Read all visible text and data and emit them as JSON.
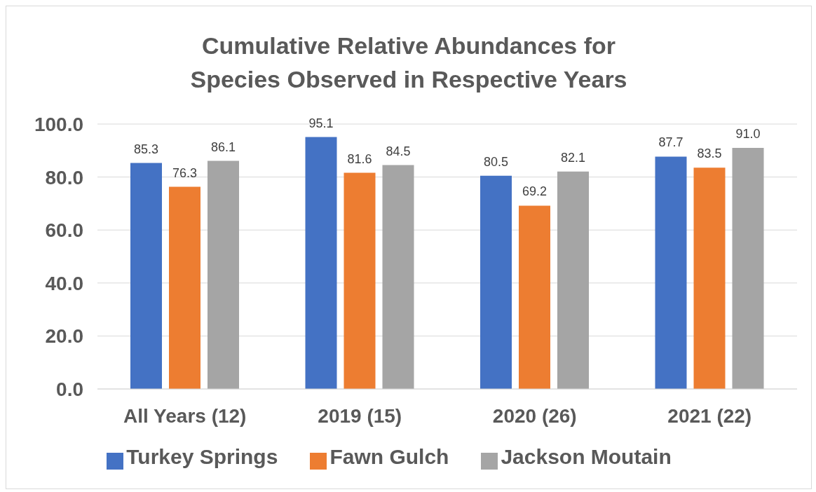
{
  "chart_data": {
    "type": "bar",
    "title": "Cumulative Relative Abundances for Species Observed in Respective Years",
    "categories": [
      "All Years (12)",
      "2019 (15)",
      "2020 (26)",
      "2021 (22)"
    ],
    "series": [
      {
        "name": "Turkey Springs",
        "color": "#4472c4",
        "values": [
          85.3,
          95.1,
          80.5,
          87.7
        ],
        "value_labels": [
          "85.3",
          "95.1",
          "80.5",
          "87.7"
        ]
      },
      {
        "name": "Fawn Gulch",
        "color": "#ed7d31",
        "values": [
          76.3,
          81.6,
          69.2,
          83.5
        ],
        "value_labels": [
          "76.3",
          "81.6",
          "69.2",
          "83.5"
        ]
      },
      {
        "name": "Jackson Moutain",
        "color": "#a5a5a5",
        "values": [
          86.1,
          84.5,
          82.1,
          91.0
        ],
        "value_labels": [
          "86.1",
          "84.5",
          "82.1",
          "91.0"
        ]
      }
    ],
    "ylim": [
      0,
      100
    ],
    "yticks": [
      {
        "value": 0,
        "label": "0.0"
      },
      {
        "value": 20,
        "label": "20.0"
      },
      {
        "value": 40,
        "label": "40.0"
      },
      {
        "value": 60,
        "label": "60.0"
      },
      {
        "value": 80,
        "label": "80.0"
      },
      {
        "value": 100,
        "label": "100.0"
      }
    ],
    "grid": "y",
    "legend": "bottom"
  }
}
